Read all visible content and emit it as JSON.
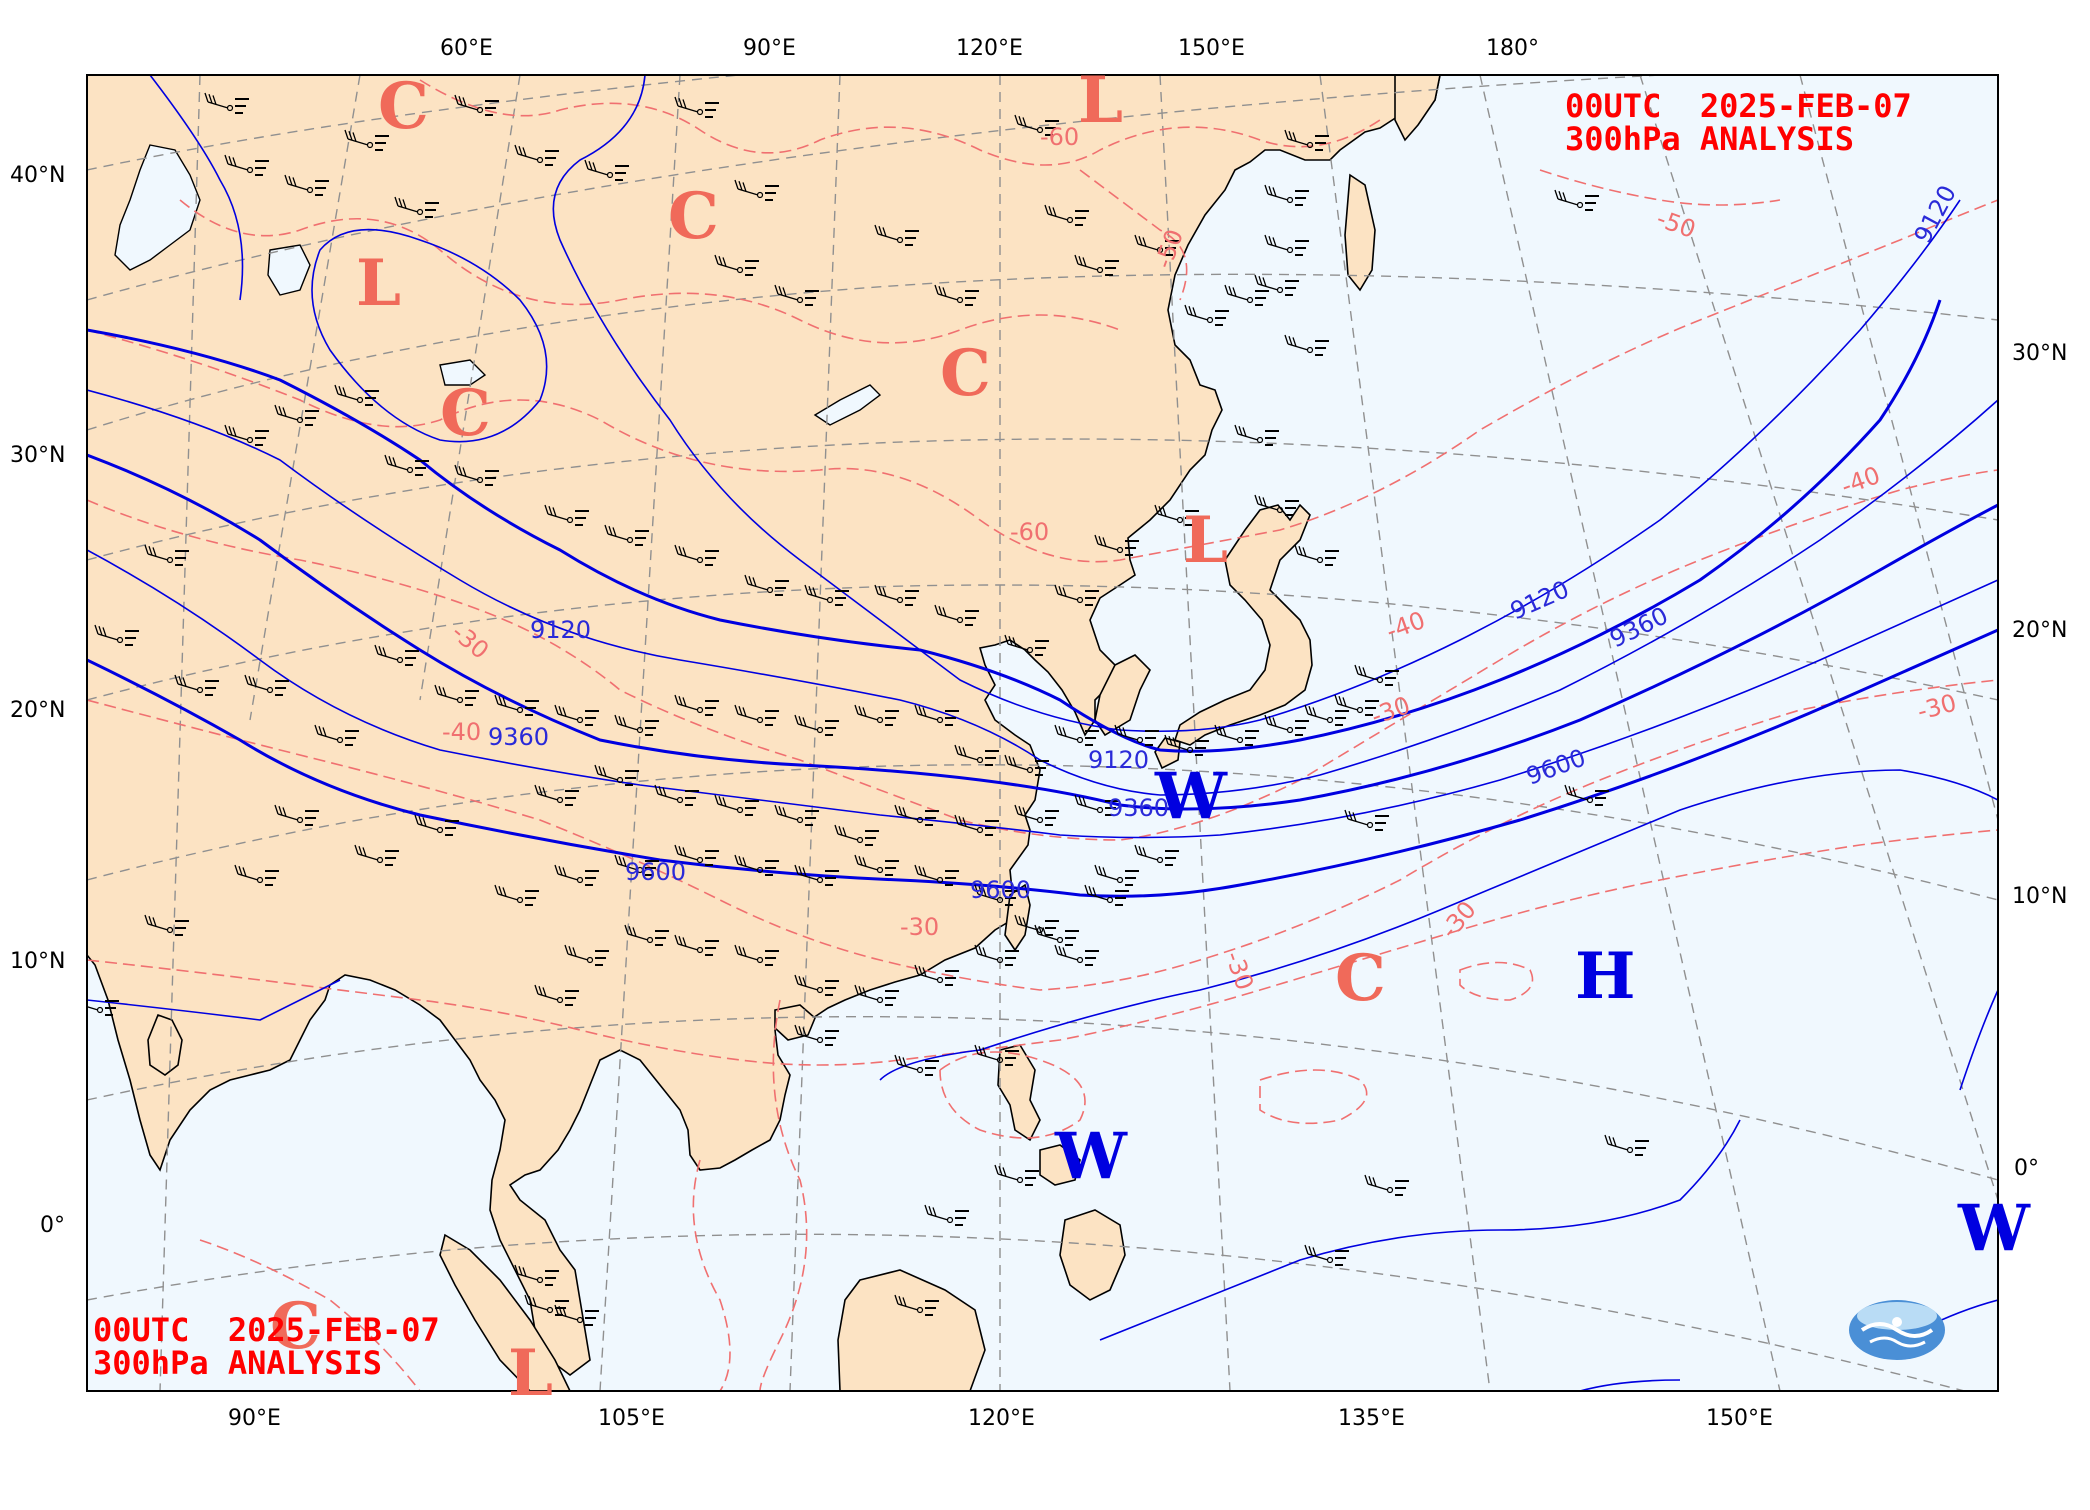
{
  "title": {
    "top_line1": "00UTC  2025-FEB-07",
    "top_line2": "300hPa ANALYSIS",
    "bottom_line1": "00UTC  2025-FEB-07",
    "bottom_line2": "300hPa ANALYSIS"
  },
  "axes": {
    "top_lon_labels": [
      "60°E",
      "90°E",
      "120°E",
      "150°E",
      "180°"
    ],
    "bottom_lon_labels": [
      "90°E",
      "105°E",
      "120°E",
      "135°E",
      "150°E"
    ],
    "left_lat_labels": [
      "40°N",
      "30°N",
      "20°N",
      "10°N",
      "0°"
    ],
    "right_lat_labels": [
      "30°N",
      "20°N",
      "10°N",
      "0°"
    ]
  },
  "contours": {
    "height_labels": [
      "9120",
      "9360",
      "9600",
      "9120",
      "9360",
      "9600",
      "9120",
      "9360",
      "9600",
      "9120"
    ],
    "temp_labels": [
      "-60",
      "-60",
      "-50",
      "-50",
      "-40",
      "-40",
      "-40",
      "-30",
      "-30",
      "-30",
      "-30",
      "-30",
      "-30",
      "-40",
      "-50",
      "-30"
    ]
  },
  "systems": [
    {
      "letter": "C",
      "kind": "cold"
    },
    {
      "letter": "L",
      "kind": "low"
    },
    {
      "letter": "C",
      "kind": "cold"
    },
    {
      "letter": "L",
      "kind": "low"
    },
    {
      "letter": "C",
      "kind": "cold"
    },
    {
      "letter": "C",
      "kind": "cold"
    },
    {
      "letter": "L",
      "kind": "low"
    },
    {
      "letter": "W",
      "kind": "warm"
    },
    {
      "letter": "C",
      "kind": "cold"
    },
    {
      "letter": "H",
      "kind": "high"
    },
    {
      "letter": "W",
      "kind": "warm"
    },
    {
      "letter": "W",
      "kind": "warm"
    },
    {
      "letter": "C",
      "kind": "cold"
    },
    {
      "letter": "L",
      "kind": "low"
    }
  ],
  "colors": {
    "land": "#fce3c3",
    "sea": "#f0f8fe",
    "height_contour": "#0000e0",
    "temp_contour": "#f07070",
    "title": "#ff0000",
    "grid": "#909090"
  },
  "icons": [
    "cwa-logo-icon"
  ]
}
